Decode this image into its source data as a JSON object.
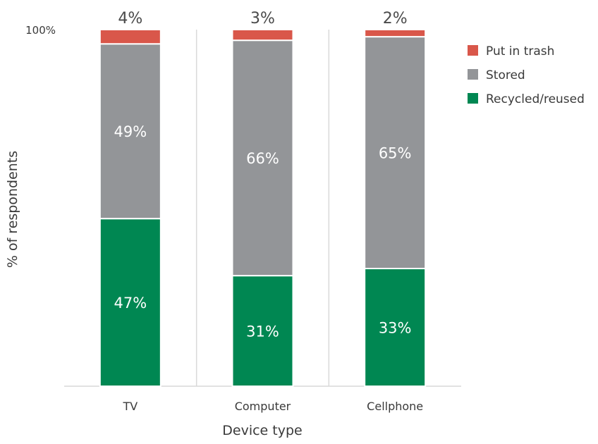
{
  "chart_data": {
    "type": "bar",
    "stacked": true,
    "categories": [
      "TV",
      "Computer",
      "Cellphone"
    ],
    "series": [
      {
        "name": "Recycled/reused",
        "values": [
          47,
          31,
          33
        ],
        "labels": [
          "47%",
          "31%",
          "33%"
        ],
        "color": "#008752"
      },
      {
        "name": "Stored",
        "values": [
          49,
          66,
          65
        ],
        "labels": [
          "49%",
          "66%",
          "65%"
        ],
        "color": "#939598"
      },
      {
        "name": "Put in trash",
        "values": [
          4,
          3,
          2
        ],
        "labels": [
          "4%",
          "3%",
          "2%"
        ],
        "color": "#d9574a"
      }
    ],
    "xlabel": "Device type",
    "ylabel": "% of respondents",
    "yticks": [
      {
        "value": 100,
        "label": "100%"
      }
    ],
    "ylim": [
      0,
      100
    ],
    "legend": {
      "position": "top-right",
      "order": [
        "Put in trash",
        "Stored",
        "Recycled/reused"
      ]
    },
    "grid": false
  }
}
